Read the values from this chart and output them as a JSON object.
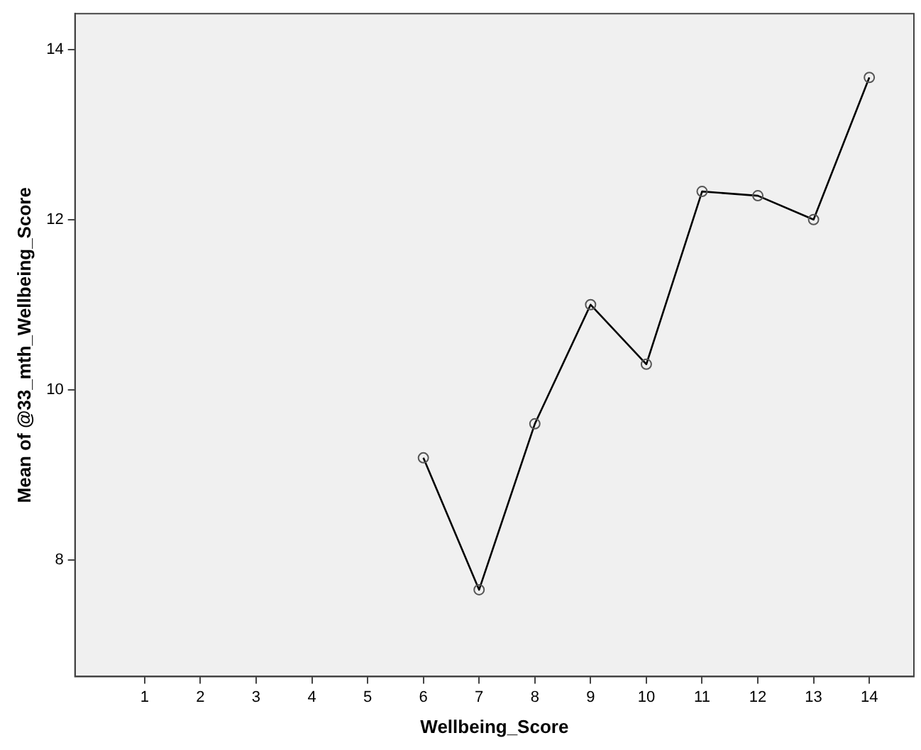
{
  "chart_data": {
    "type": "line",
    "xlabel": "Wellbeing_Score",
    "ylabel": "Mean of @33_mth_Wellbeing_Score",
    "x": [
      6,
      7,
      8,
      9,
      10,
      11,
      12,
      13,
      14
    ],
    "series": [
      {
        "color": "#000000",
        "values": [
          9.2,
          7.65,
          9.6,
          11,
          10.3,
          12.33,
          12.28,
          12,
          13.67
        ]
      }
    ],
    "xlim": [
      -0.25,
      14.8
    ],
    "xticks": [
      1,
      2,
      3,
      4,
      5,
      6,
      7,
      8,
      9,
      10,
      11,
      12,
      13,
      14
    ],
    "ylim": [
      6.63,
      14.42
    ],
    "yticks": [
      8,
      10,
      12,
      14
    ],
    "grid": false,
    "legend": false,
    "marker": "circle",
    "line_style": "solid"
  }
}
